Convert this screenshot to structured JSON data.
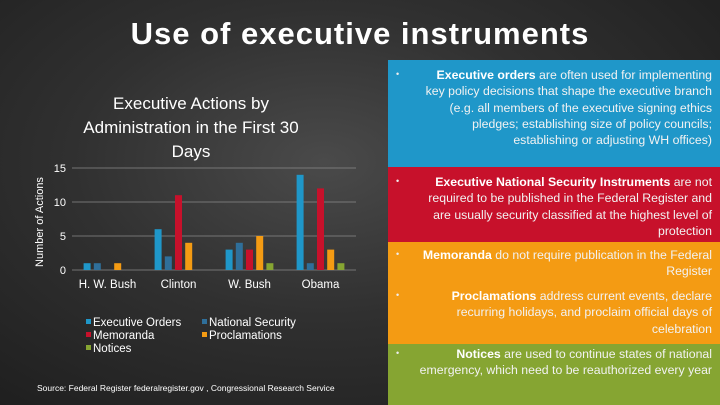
{
  "slide": {
    "title": "Use of executive instruments",
    "source": "Source: Federal Register federalregister.gov , Congressional Research Service"
  },
  "chart_data": {
    "type": "bar",
    "title": "Executive Actions by Administration in the First 30 Days",
    "title_lines": [
      "Executive Actions by",
      "Administration in the First 30",
      "Days"
    ],
    "xlabel": "",
    "ylabel": "Number of Actions",
    "ylim": [
      0,
      15
    ],
    "yticks": [
      0,
      5,
      10,
      15
    ],
    "grid": true,
    "legend_position": "bottom",
    "categories": [
      "H. W. Bush",
      "Clinton",
      "W. Bush",
      "Obama"
    ],
    "series": [
      {
        "name": "Executive Orders",
        "color": "#1f97c9",
        "values": [
          1,
          6,
          3,
          14
        ]
      },
      {
        "name": "National Security",
        "color": "#2f6f9a",
        "values": [
          1,
          2,
          4,
          1
        ]
      },
      {
        "name": "Memoranda",
        "color": "#c7112b",
        "values": [
          0,
          11,
          3,
          12
        ]
      },
      {
        "name": "Proclamations",
        "color": "#f49b13",
        "values": [
          1,
          4,
          5,
          3
        ]
      },
      {
        "name": "Notices",
        "color": "#86a532",
        "values": [
          0,
          0,
          1,
          1
        ]
      }
    ]
  },
  "bullets": [
    {
      "bold": "Executive orders",
      "text": " are often used for implementing key policy decisions that shape the executive branch (e.g. all members of the executive signing ethics pledges; establishing size of policy councils; establishing or adjusting WH offices)"
    },
    {
      "bold": "Executive National Security Instruments",
      "text": " are not required to be published in the Federal Register and are usually security classified at the highest level of protection"
    },
    {
      "bold": "Memoranda",
      "text": " do not require publication in the Federal Register"
    },
    {
      "bold": "Proclamations",
      "text": " address current events, declare recurring holidays, and proclaim official days of celebration"
    },
    {
      "bold": "Notices",
      "text": " are used to continue states of national emergency, which need to be reauthorized every year"
    }
  ],
  "colors": {
    "band_blue": "#1f97c9",
    "band_red": "#c7112b",
    "band_orange": "#f49b13",
    "band_green": "#86a532"
  }
}
